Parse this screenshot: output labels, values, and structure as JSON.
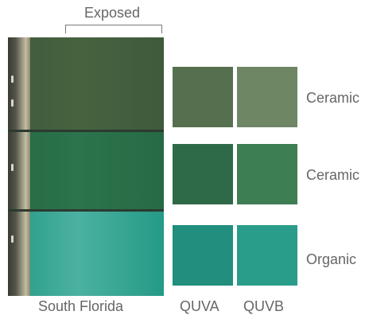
{
  "header": {
    "exposed_label": "Exposed"
  },
  "panels": [
    {
      "name": "panel-top",
      "color": "#3f5a3c",
      "highlight": "#46633f"
    },
    {
      "name": "panel-middle",
      "color": "#266a45",
      "highlight": "#2b744c"
    },
    {
      "name": "panel-bottom",
      "color": "#249a86",
      "highlight": "#4cb1a0"
    }
  ],
  "swatch_rows": [
    {
      "label": "Ceramic",
      "quva_color": "#56704f",
      "quvb_color": "#6f8664"
    },
    {
      "label": "Ceramic",
      "quva_color": "#2e6a47",
      "quvb_color": "#3d7e53"
    },
    {
      "label": "Organic",
      "quva_color": "#218e7e",
      "quvb_color": "#2a9c8a"
    }
  ],
  "footer": {
    "location_label": "South Florida",
    "quva_label": "QUVA",
    "quvb_label": "QUVB"
  }
}
